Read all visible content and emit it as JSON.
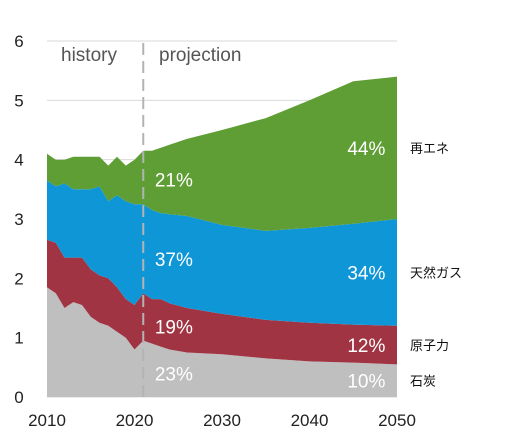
{
  "chart_data": {
    "type": "area",
    "stacked": true,
    "title": "",
    "xlabel": "",
    "ylabel": "",
    "xlim": [
      2010,
      2050
    ],
    "ylim": [
      0,
      6
    ],
    "x_ticks": [
      "2010",
      "2020",
      "2030",
      "2040",
      "2050"
    ],
    "y_ticks": [
      "0",
      "1",
      "2",
      "3",
      "4",
      "5",
      "6"
    ],
    "grid": "horizontal",
    "annotations": {
      "history": "history",
      "projection": "projection",
      "divider_year": 2021
    },
    "series": [
      {
        "name": "石炭",
        "color": "#bfbfbf",
        "points": [
          [
            2010,
            1.85
          ],
          [
            2011,
            1.75
          ],
          [
            2012,
            1.5
          ],
          [
            2013,
            1.6
          ],
          [
            2014,
            1.55
          ],
          [
            2015,
            1.35
          ],
          [
            2016,
            1.25
          ],
          [
            2017,
            1.2
          ],
          [
            2018,
            1.1
          ],
          [
            2019,
            1.0
          ],
          [
            2020,
            0.8
          ],
          [
            2021,
            0.95
          ],
          [
            2022,
            0.9
          ],
          [
            2023,
            0.85
          ],
          [
            2024,
            0.8
          ],
          [
            2026,
            0.75
          ],
          [
            2030,
            0.72
          ],
          [
            2035,
            0.65
          ],
          [
            2040,
            0.6
          ],
          [
            2045,
            0.58
          ],
          [
            2050,
            0.55
          ]
        ],
        "labels": {
          "2021": "23%",
          "2050": "10%"
        }
      },
      {
        "name": "原子力",
        "color": "#a13443",
        "points": [
          [
            2010,
            0.8
          ],
          [
            2011,
            0.85
          ],
          [
            2012,
            0.85
          ],
          [
            2013,
            0.75
          ],
          [
            2014,
            0.8
          ],
          [
            2015,
            0.8
          ],
          [
            2016,
            0.8
          ],
          [
            2017,
            0.8
          ],
          [
            2018,
            0.75
          ],
          [
            2019,
            0.65
          ],
          [
            2020,
            0.75
          ],
          [
            2021,
            0.8
          ],
          [
            2022,
            0.75
          ],
          [
            2023,
            0.8
          ],
          [
            2024,
            0.78
          ],
          [
            2026,
            0.75
          ],
          [
            2030,
            0.68
          ],
          [
            2035,
            0.65
          ],
          [
            2040,
            0.65
          ],
          [
            2045,
            0.64
          ],
          [
            2050,
            0.65
          ]
        ],
        "labels": {
          "2021": "19%",
          "2050": "12%"
        }
      },
      {
        "name": "天然ガス",
        "color": "#0e96d6",
        "points": [
          [
            2010,
            1.0
          ],
          [
            2011,
            0.95
          ],
          [
            2012,
            1.25
          ],
          [
            2013,
            1.15
          ],
          [
            2014,
            1.15
          ],
          [
            2015,
            1.35
          ],
          [
            2016,
            1.5
          ],
          [
            2017,
            1.3
          ],
          [
            2018,
            1.55
          ],
          [
            2019,
            1.65
          ],
          [
            2020,
            1.7
          ],
          [
            2021,
            1.5
          ],
          [
            2022,
            1.5
          ],
          [
            2023,
            1.45
          ],
          [
            2024,
            1.5
          ],
          [
            2026,
            1.55
          ],
          [
            2030,
            1.5
          ],
          [
            2035,
            1.5
          ],
          [
            2040,
            1.6
          ],
          [
            2045,
            1.7
          ],
          [
            2050,
            1.8
          ]
        ],
        "labels": {
          "2021": "37%",
          "2050": "34%"
        }
      },
      {
        "name": "再エネ",
        "color": "#5f9e35",
        "points": [
          [
            2010,
            0.45
          ],
          [
            2011,
            0.45
          ],
          [
            2012,
            0.4
          ],
          [
            2013,
            0.55
          ],
          [
            2014,
            0.55
          ],
          [
            2015,
            0.55
          ],
          [
            2016,
            0.5
          ],
          [
            2017,
            0.6
          ],
          [
            2018,
            0.65
          ],
          [
            2019,
            0.6
          ],
          [
            2020,
            0.75
          ],
          [
            2021,
            0.9
          ],
          [
            2022,
            1.0
          ],
          [
            2023,
            1.1
          ],
          [
            2024,
            1.17
          ],
          [
            2026,
            1.3
          ],
          [
            2030,
            1.6
          ],
          [
            2035,
            1.9
          ],
          [
            2040,
            2.15
          ],
          [
            2045,
            2.4
          ],
          [
            2050,
            2.4
          ]
        ],
        "labels": {
          "2021": "21%",
          "2050": "44%"
        }
      }
    ]
  }
}
